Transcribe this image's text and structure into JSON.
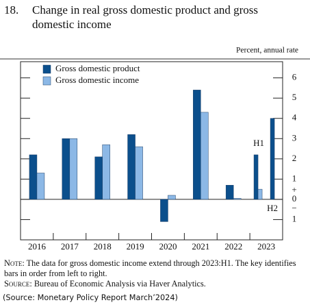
{
  "chart_data": {
    "type": "bar",
    "number": "18.",
    "title": "Change in real gross domestic product and gross domestic income",
    "unit_label": "Percent, annual rate",
    "categories": [
      "2016",
      "2017",
      "2018",
      "2019",
      "2020",
      "2021",
      "2022",
      "2023"
    ],
    "series": [
      {
        "name": "Gross domestic product",
        "color": "#0b4f8c",
        "values": [
          2.2,
          3.0,
          2.1,
          3.2,
          -1.1,
          5.4,
          0.7,
          2.2
        ]
      },
      {
        "name": "Gross domestic income",
        "color": "#8cb8e6",
        "values": [
          1.3,
          3.0,
          2.7,
          2.6,
          0.2,
          4.3,
          0.05,
          0.5
        ]
      }
    ],
    "h1_label": "H1",
    "h2": {
      "label": "H2",
      "values": [
        4.0,
        null
      ]
    },
    "ylim": [
      -2,
      6.8
    ],
    "yticks": [
      {
        "value": -1,
        "label": "1"
      },
      0,
      1,
      2,
      3,
      4,
      5,
      6
    ],
    "zero_signs": [
      "+",
      "−"
    ],
    "legend": "upper left",
    "note": {
      "lead": "Note:",
      "text": "The data for gross domestic income extend through 2023:H1. The key identifies bars in order from left to right."
    },
    "source": {
      "lead": "Source:",
      "text": "Bureau of Economic Analysis via Haver Analytics."
    },
    "caption": "(Source: Monetary Policy Report March’2024)"
  }
}
